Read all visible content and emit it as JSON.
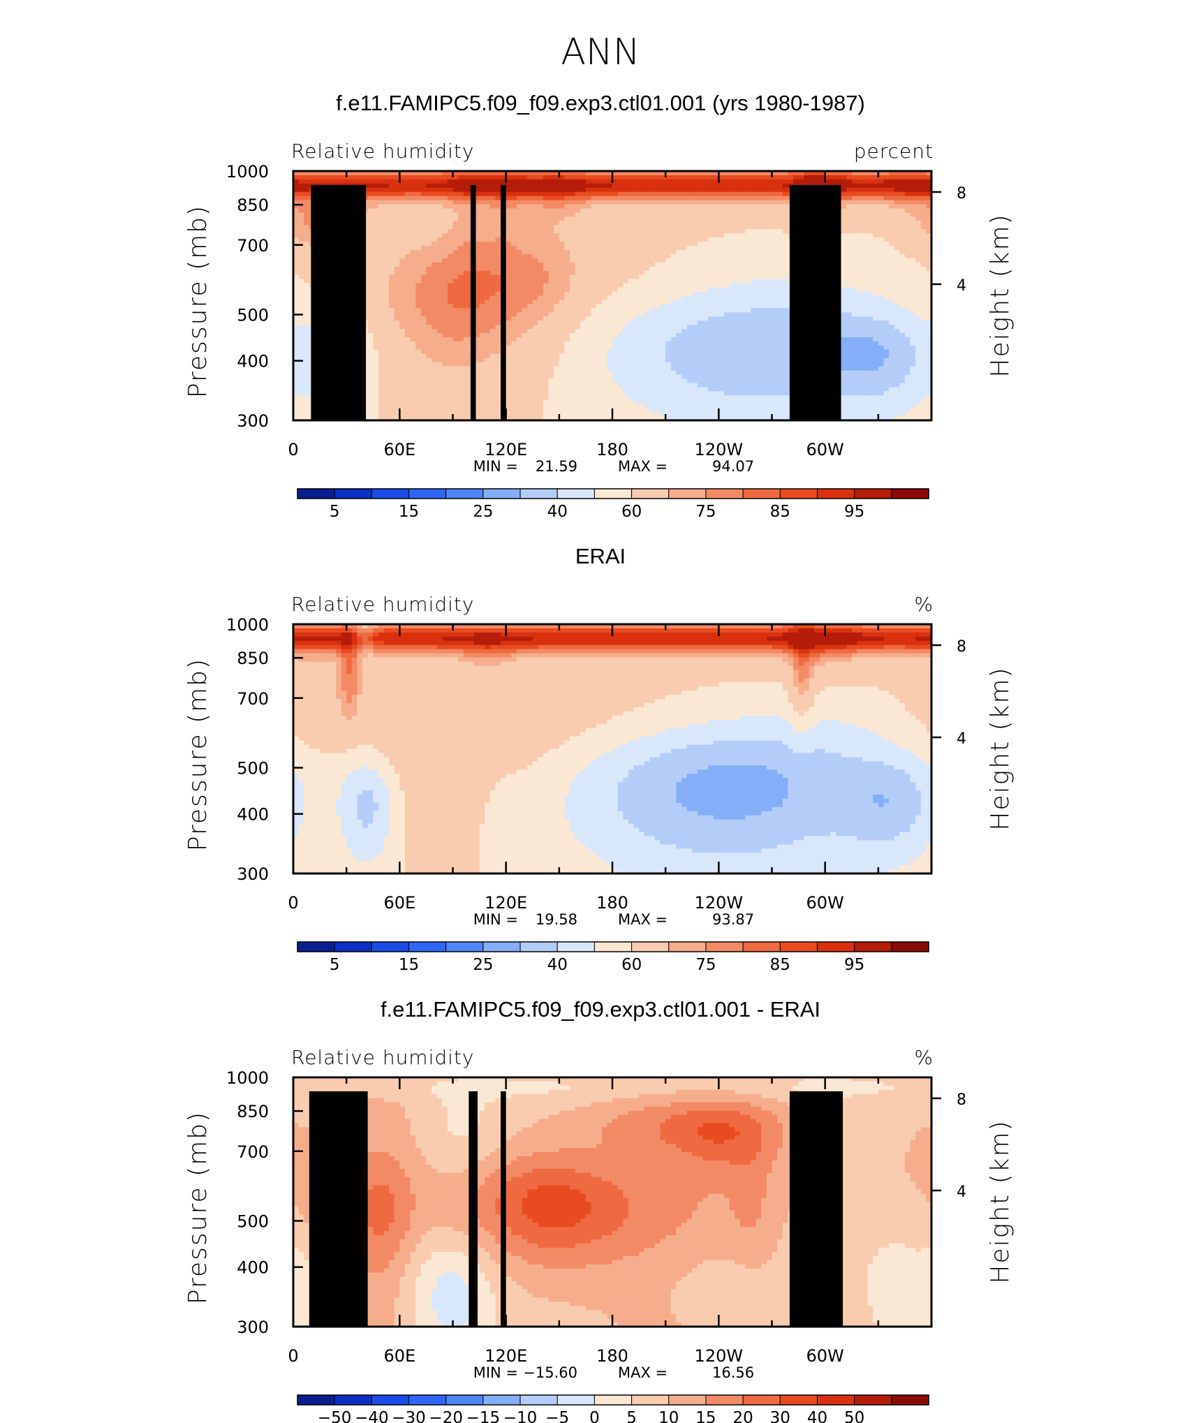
{
  "figure_title": "ANN",
  "chart_data": [
    {
      "type": "heatmap",
      "title": "f.e11.FAMIPC5.f09_f09.exp3.ctl01.001 (yrs 1980-1987)",
      "variable": "Relative humidity",
      "units": "percent",
      "xlabel": "",
      "ylabel": "Pressure (mb)",
      "ylabel_right": "Height (km)",
      "x_ticks": [
        "0",
        "60E",
        "120E",
        "180",
        "120W",
        "60W"
      ],
      "y_ticks": [
        "300",
        "400",
        "500",
        "700",
        "850",
        "1000"
      ],
      "y2_ticks": [
        "8",
        "4"
      ],
      "ylim": [
        1000,
        300
      ],
      "min_label": "MIN =",
      "min_value": "21.59",
      "max_label": "MAX =",
      "max_value": "94.07",
      "colorbar_labels": [
        "5",
        "15",
        "25",
        "40",
        "60",
        "75",
        "85",
        "95"
      ],
      "colorbar_colors": [
        "#0a1f8f",
        "#0c2fc4",
        "#1a4be6",
        "#2f66f5",
        "#4f86f7",
        "#84aef8",
        "#b4cdf8",
        "#d9e7fb",
        "#fbe8d4",
        "#f9ccb0",
        "#f6ad8c",
        "#f38a66",
        "#ef6a40",
        "#e94b20",
        "#d9310f",
        "#b51c0a",
        "#8a0a08"
      ],
      "blobs": [
        {
          "x": 270,
          "p": 410,
          "dx": 70,
          "dp": 90,
          "v": -24
        },
        {
          "x": 25,
          "p": 410,
          "dx": 12,
          "dp": 70,
          "v": -20
        },
        {
          "x": 330,
          "p": 410,
          "dx": 20,
          "dp": 60,
          "v": -14
        },
        {
          "x": 95,
          "p": 530,
          "dx": 26,
          "dp": 130,
          "v": 10
        },
        {
          "x": 140,
          "p": 560,
          "dx": 18,
          "dp": 130,
          "v": 6
        },
        {
          "x": 15,
          "p": 780,
          "dx": 20,
          "dp": 80,
          "v": 14
        },
        {
          "x": 100,
          "p": 850,
          "dx": 10,
          "dp": 150,
          "v": 6
        },
        {
          "x": 120,
          "p": 860,
          "dx": 8,
          "dp": 150,
          "v": 6
        },
        {
          "x": 148,
          "p": 870,
          "dx": 14,
          "dp": 80,
          "v": 8
        },
        {
          "x": 292,
          "p": 800,
          "dx": 6,
          "dp": 140,
          "v": 12
        },
        {
          "x": 300,
          "p": 900,
          "dx": 10,
          "dp": 90,
          "v": 8
        },
        {
          "x": 345,
          "p": 900,
          "dx": 12,
          "dp": 70,
          "v": 4
        }
      ],
      "masks": [
        {
          "lon0": 10,
          "lon1": 41,
          "pb": 935
        },
        {
          "lon0": 27,
          "lon1": 35,
          "pb": 855
        },
        {
          "lon0": 100,
          "lon1": 103,
          "pb": 935
        },
        {
          "lon0": 117,
          "lon1": 120,
          "pb": 935
        },
        {
          "lon0": 280,
          "lon1": 309,
          "pb": 935
        }
      ]
    },
    {
      "type": "heatmap",
      "title": "ERAI",
      "variable": "Relative humidity",
      "units": "%",
      "xlabel": "",
      "ylabel": "Pressure (mb)",
      "ylabel_right": "Height (km)",
      "x_ticks": [
        "0",
        "60E",
        "120E",
        "180",
        "120W",
        "60W"
      ],
      "y_ticks": [
        "300",
        "400",
        "500",
        "700",
        "850",
        "1000"
      ],
      "y2_ticks": [
        "8",
        "4"
      ],
      "ylim": [
        1000,
        300
      ],
      "min_label": "MIN =",
      "min_value": "19.58",
      "max_label": "MAX =",
      "max_value": "93.87",
      "colorbar_labels": [
        "5",
        "15",
        "25",
        "40",
        "60",
        "75",
        "85",
        "95"
      ],
      "colorbar_colors": [
        "#0a1f8f",
        "#0c2fc4",
        "#1a4be6",
        "#2f66f5",
        "#4f86f7",
        "#84aef8",
        "#b4cdf8",
        "#d9e7fb",
        "#fbe8d4",
        "#f9ccb0",
        "#f6ad8c",
        "#f38a66",
        "#ef6a40",
        "#e94b20",
        "#d9310f",
        "#b51c0a",
        "#8a0a08"
      ],
      "blobs": [
        {
          "x": 242,
          "p": 440,
          "dx": 70,
          "dp": 110,
          "v": -28
        },
        {
          "x": 42,
          "p": 420,
          "dx": 12,
          "dp": 80,
          "v": -26
        },
        {
          "x": 339,
          "p": 420,
          "dx": 20,
          "dp": 70,
          "v": -18
        },
        {
          "x": 120,
          "p": 420,
          "dx": 10,
          "dp": 60,
          "v": -3
        },
        {
          "x": 10,
          "p": 720,
          "dx": 18,
          "dp": 100,
          "v": 8
        },
        {
          "x": 32,
          "p": 800,
          "dx": 4,
          "dp": 110,
          "v": 14
        },
        {
          "x": 40,
          "p": 960,
          "dx": 5,
          "dp": 60,
          "v": -12
        },
        {
          "x": 110,
          "p": 860,
          "dx": 12,
          "dp": 70,
          "v": 6
        },
        {
          "x": 287,
          "p": 780,
          "dx": 5,
          "dp": 150,
          "v": 14
        },
        {
          "x": 300,
          "p": 900,
          "dx": 14,
          "dp": 90,
          "v": 8
        }
      ],
      "masks": []
    },
    {
      "type": "heatmap",
      "title": "f.e11.FAMIPC5.f09_f09.exp3.ctl01.001 - ERAI",
      "variable": "Relative humidity",
      "units": "%",
      "xlabel": "",
      "ylabel": "Pressure (mb)",
      "ylabel_right": "Height (km)",
      "x_ticks": [
        "0",
        "60E",
        "120E",
        "180",
        "120W",
        "60W"
      ],
      "y_ticks": [
        "300",
        "400",
        "500",
        "700",
        "850",
        "1000"
      ],
      "y2_ticks": [
        "8",
        "4"
      ],
      "ylim": [
        1000,
        300
      ],
      "min_label": "MIN =",
      "min_value": "−15.60",
      "max_label": "MAX =",
      "max_value": "16.56",
      "colorbar_labels": [
        "−50",
        "−40",
        "−30",
        "−20",
        "−15",
        "−10",
        "−5",
        "0",
        "5",
        "10",
        "15",
        "20",
        "30",
        "40",
        "50"
      ],
      "colorbar_colors": [
        "#0a1f8f",
        "#0c2fc4",
        "#1a4be6",
        "#2f66f5",
        "#4f86f7",
        "#84aef8",
        "#b4cdf8",
        "#d9e7fb",
        "#fbe8d4",
        "#f9ccb0",
        "#f6ad8c",
        "#f38a66",
        "#ef6a40",
        "#e94b20",
        "#d9310f",
        "#b51c0a",
        "#8a0a08"
      ],
      "blobs": [
        {
          "x": 88,
          "p": 350,
          "dx": 18,
          "dp": 80,
          "v": -12
        },
        {
          "x": 4,
          "p": 360,
          "dx": 6,
          "dp": 60,
          "v": -6
        },
        {
          "x": 238,
          "p": 360,
          "dx": 20,
          "dp": 50,
          "v": -4
        },
        {
          "x": 345,
          "p": 380,
          "dx": 18,
          "dp": 90,
          "v": -5
        },
        {
          "x": 92,
          "p": 780,
          "dx": 18,
          "dp": 150,
          "v": -6
        },
        {
          "x": 155,
          "p": 520,
          "dx": 40,
          "dp": 90,
          "v": 11
        },
        {
          "x": 140,
          "p": 560,
          "dx": 26,
          "dp": 110,
          "v": 9
        },
        {
          "x": 50,
          "p": 520,
          "dx": 12,
          "dp": 110,
          "v": 9
        },
        {
          "x": 25,
          "p": 540,
          "dx": 9,
          "dp": 80,
          "v": 6
        },
        {
          "x": 245,
          "p": 760,
          "dx": 22,
          "dp": 90,
          "v": 10
        },
        {
          "x": 208,
          "p": 790,
          "dx": 40,
          "dp": 70,
          "v": 6
        },
        {
          "x": 258,
          "p": 560,
          "dx": 8,
          "dp": 100,
          "v": 5
        },
        {
          "x": 298,
          "p": 920,
          "dx": 8,
          "dp": 60,
          "v": -5
        },
        {
          "x": 20,
          "p": 860,
          "dx": 10,
          "dp": 60,
          "v": -4
        }
      ],
      "masks": [
        {
          "lon0": 9,
          "lon1": 42,
          "pb": 935
        },
        {
          "lon0": 27,
          "lon1": 36,
          "pb": 855
        },
        {
          "lon0": 99,
          "lon1": 104,
          "pb": 935
        },
        {
          "lon0": 117,
          "lon1": 120,
          "pb": 935
        },
        {
          "lon0": 280,
          "lon1": 310,
          "pb": 935
        }
      ]
    }
  ]
}
